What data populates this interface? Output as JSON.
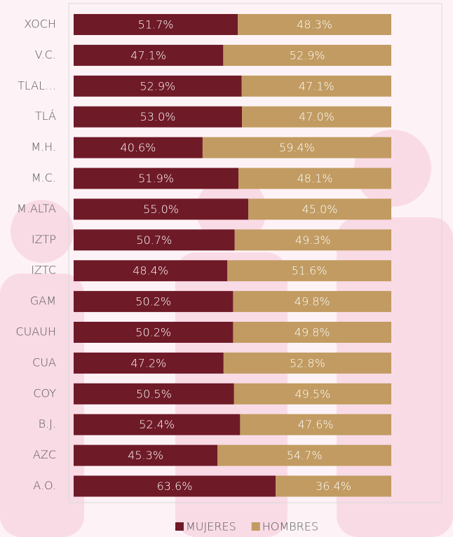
{
  "chart_data": {
    "type": "bar",
    "orientation": "horizontal",
    "stacked": true,
    "categories": [
      "XOCH",
      "V.C.",
      "TLAL…",
      "TLÁ",
      "M.H.",
      "M.C.",
      "M.ALTA",
      "IZTP",
      "IZTC",
      "GAM",
      "CUAUH",
      "CUA",
      "COY",
      "B.J.",
      "AZC",
      "A.O."
    ],
    "series": [
      {
        "name": "MUJERES",
        "color": "#6f1a27",
        "values": [
          51.7,
          47.1,
          52.9,
          53.0,
          40.6,
          51.9,
          55.0,
          50.7,
          48.4,
          50.2,
          50.2,
          47.2,
          50.5,
          52.4,
          45.3,
          63.6
        ],
        "value_labels": [
          "51.7%",
          "47.1%",
          "52.9%",
          "53.0%",
          "40.6%",
          "51.9%",
          "55.0%",
          "50.7%",
          "48.4%",
          "50.2%",
          "50.2%",
          "47.2%",
          "50.5%",
          "52.4%",
          "45.3%",
          "63.6%"
        ]
      },
      {
        "name": "HOMBRES",
        "color": "#c19b61",
        "values": [
          48.3,
          52.9,
          47.1,
          47.0,
          59.4,
          48.1,
          45.0,
          49.3,
          51.6,
          49.8,
          49.8,
          52.8,
          49.5,
          47.6,
          54.7,
          36.4
        ],
        "value_labels": [
          "48.3%",
          "52.9%",
          "47.1%",
          "47.0%",
          "59.4%",
          "48.1%",
          "45.0%",
          "49.3%",
          "51.6%",
          "49.8%",
          "49.8%",
          "52.8%",
          "49.5%",
          "47.6%",
          "54.7%",
          "36.4%"
        ]
      }
    ],
    "xlim": [
      0,
      100
    ],
    "legend": "bottom"
  }
}
